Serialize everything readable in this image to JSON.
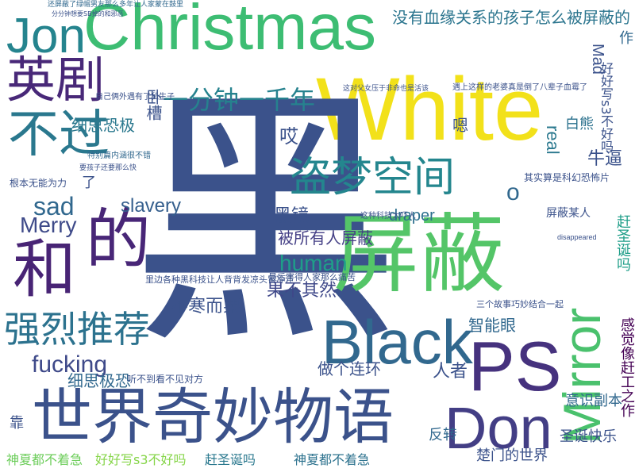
{
  "words": {
    "christmas": "Christmas",
    "white": "White",
    "jon": "Jon",
    "big_char": "黑",
    "pingbi": "屏蔽",
    "black": "Black",
    "ps": "PS",
    "don": "Don",
    "mirror": "Mirror",
    "shijie": "世界奇妙物语",
    "de": "的",
    "he": "和",
    "yingju": "英剧",
    "buguo": "不过",
    "daomeng": "盗梦空间",
    "qianglie": "强烈推荐",
    "fenzhong": "一分钟一千年",
    "meiyou": "没有血缘关系的孩子怎么被屏蔽的",
    "sad": "sad",
    "merry": "Merry",
    "human": "human",
    "slavery": "slavery",
    "fucking": "fucking",
    "real": "real",
    "mad": "Mad",
    "draper": "draper",
    "heijing": "黑镜",
    "beisuoyou": "被所有人屏蔽",
    "guoburan": "果不其然",
    "buhan": "不寒而栗",
    "zuoge": "做个连环",
    "renzhe": "人者",
    "xibu": "细思恐极",
    "xibu2": "细思极恐",
    "zhinengyan": "智能眼",
    "yishi": "意识副本",
    "chumen": "楚门的世界",
    "shengdan": "圣诞快乐",
    "fanzhuan": "反转",
    "shenxia": "神夏都不着急",
    "shenxia2": "神夏都不着急",
    "haohaoxie": "好好写s3不好吗",
    "haohaoxie_v": "好好写s3不好吗",
    "ganshengdan": "赶圣诞吗",
    "ganshengdan_v": "赶圣诞吗",
    "ganjue": "感觉像赶工之作",
    "niubi": "牛逼",
    "baixiong": "白熊",
    "ai": "哎",
    "en": "嗯",
    "o": "o",
    "wotao": "卧槽",
    "kao": "靠",
    "le": "了",
    "zuo": "作",
    "qishi": "其实算是科幻恐怖片",
    "pingbimouren": "屏蔽某人",
    "libian": "里边各种黑科技让人背背发凉头冒冷汗",
    "genben": "根本无能为力",
    "zijiliang": "自己俩外遇有了私生子",
    "tebie": "特别篇内涵很不错",
    "ting": "听不到看不见对方",
    "yinci": "三个故事巧妙结合一起",
    "zhege": "这种科技太吓人",
    "jiyu": "遇上这样的老婆真是倒了八辈子血霉了",
    "zheyao": "这对父女压于非命也是活该",
    "zuihou": "最后害得人家那么痛苦",
    "huanying": "还屏蔽了绿帽男友那么多年让人家蒙在鼓里",
    "fenfen": "分分钟想要SB掉的和邪恶",
    "yaowa": "要孩子还要那么快",
    "disappeared": "disappeared"
  }
}
